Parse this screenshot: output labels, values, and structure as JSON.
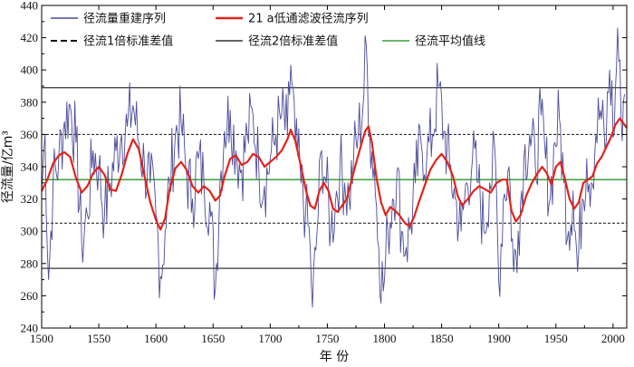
{
  "chart_data": {
    "type": "line",
    "xlabel": "年 份",
    "ylabel": "径流量/亿m³",
    "xlim": [
      1500,
      2012
    ],
    "ylim": [
      240,
      440
    ],
    "xticks": [
      "1500",
      "1550",
      "1600",
      "1650",
      "1700",
      "1750",
      "1800",
      "1850",
      "1900",
      "1950",
      "2000"
    ],
    "yticks": [
      "240",
      "260",
      "280",
      "300",
      "320",
      "340",
      "360",
      "380",
      "400",
      "420",
      "440"
    ],
    "legend": {
      "position": "top",
      "items": [
        {
          "key": "recon",
          "label": "径流量重建序列"
        },
        {
          "key": "smooth",
          "label": "21 a低通滤波径流序列"
        },
        {
          "key": "sd1",
          "label": "径流1倍标准差值"
        },
        {
          "key": "sd2",
          "label": "径流2倍标准差值"
        },
        {
          "key": "mean",
          "label": "径流平均值线"
        }
      ]
    },
    "colors": {
      "recon": "#4a4a9a",
      "smooth": "#e2231a",
      "sd1": "#111111",
      "sd2": "#333333",
      "mean": "#3aa13a"
    },
    "reference_lines": {
      "mean": 332,
      "sd1_upper": 360,
      "sd1_lower": 305,
      "sd2_upper": 389,
      "sd2_lower": 277
    },
    "reconstructed_series": {
      "step_years": 1,
      "peaks": [
        {
          "year": 1500,
          "value": 325
        },
        {
          "year": 1503,
          "value": 360
        },
        {
          "year": 1506,
          "value": 270
        },
        {
          "year": 1510,
          "value": 330
        },
        {
          "year": 1515,
          "value": 345
        },
        {
          "year": 1520,
          "value": 368
        },
        {
          "year": 1525,
          "value": 378
        },
        {
          "year": 1530,
          "value": 355
        },
        {
          "year": 1535,
          "value": 292
        },
        {
          "year": 1540,
          "value": 310
        },
        {
          "year": 1545,
          "value": 350
        },
        {
          "year": 1550,
          "value": 340
        },
        {
          "year": 1555,
          "value": 310
        },
        {
          "year": 1560,
          "value": 330
        },
        {
          "year": 1565,
          "value": 350
        },
        {
          "year": 1570,
          "value": 360
        },
        {
          "year": 1575,
          "value": 365
        },
        {
          "year": 1580,
          "value": 378
        },
        {
          "year": 1585,
          "value": 355
        },
        {
          "year": 1590,
          "value": 340
        },
        {
          "year": 1595,
          "value": 330
        },
        {
          "year": 1600,
          "value": 310
        },
        {
          "year": 1604,
          "value": 272
        },
        {
          "year": 1608,
          "value": 300
        },
        {
          "year": 1612,
          "value": 330
        },
        {
          "year": 1617,
          "value": 360
        },
        {
          "year": 1622,
          "value": 368
        },
        {
          "year": 1627,
          "value": 335
        },
        {
          "year": 1632,
          "value": 320
        },
        {
          "year": 1637,
          "value": 345
        },
        {
          "year": 1642,
          "value": 330
        },
        {
          "year": 1647,
          "value": 318
        },
        {
          "year": 1652,
          "value": 264
        },
        {
          "year": 1656,
          "value": 330
        },
        {
          "year": 1660,
          "value": 362
        },
        {
          "year": 1665,
          "value": 375
        },
        {
          "year": 1670,
          "value": 350
        },
        {
          "year": 1675,
          "value": 338
        },
        {
          "year": 1680,
          "value": 360
        },
        {
          "year": 1685,
          "value": 372
        },
        {
          "year": 1690,
          "value": 340
        },
        {
          "year": 1695,
          "value": 328
        },
        {
          "year": 1700,
          "value": 345
        },
        {
          "year": 1705,
          "value": 360
        },
        {
          "year": 1710,
          "value": 372
        },
        {
          "year": 1715,
          "value": 360
        },
        {
          "year": 1718,
          "value": 403
        },
        {
          "year": 1722,
          "value": 355
        },
        {
          "year": 1727,
          "value": 330
        },
        {
          "year": 1731,
          "value": 312
        },
        {
          "year": 1735,
          "value": 290
        },
        {
          "year": 1737,
          "value": 253
        },
        {
          "year": 1741,
          "value": 300
        },
        {
          "year": 1745,
          "value": 350
        },
        {
          "year": 1749,
          "value": 330
        },
        {
          "year": 1753,
          "value": 300
        },
        {
          "year": 1757,
          "value": 318
        },
        {
          "year": 1761,
          "value": 340
        },
        {
          "year": 1765,
          "value": 330
        },
        {
          "year": 1769,
          "value": 320
        },
        {
          "year": 1773,
          "value": 345
        },
        {
          "year": 1777,
          "value": 360
        },
        {
          "year": 1781,
          "value": 375
        },
        {
          "year": 1784,
          "value": 416
        },
        {
          "year": 1787,
          "value": 360
        },
        {
          "year": 1791,
          "value": 340
        },
        {
          "year": 1795,
          "value": 290
        },
        {
          "year": 1799,
          "value": 263
        },
        {
          "year": 1803,
          "value": 300
        },
        {
          "year": 1807,
          "value": 320
        },
        {
          "year": 1811,
          "value": 338
        },
        {
          "year": 1815,
          "value": 300
        },
        {
          "year": 1819,
          "value": 290
        },
        {
          "year": 1823,
          "value": 305
        },
        {
          "year": 1827,
          "value": 330
        },
        {
          "year": 1832,
          "value": 355
        },
        {
          "year": 1837,
          "value": 345
        },
        {
          "year": 1842,
          "value": 360
        },
        {
          "year": 1847,
          "value": 390
        },
        {
          "year": 1852,
          "value": 362
        },
        {
          "year": 1857,
          "value": 340
        },
        {
          "year": 1862,
          "value": 320
        },
        {
          "year": 1867,
          "value": 300
        },
        {
          "year": 1872,
          "value": 330
        },
        {
          "year": 1877,
          "value": 345
        },
        {
          "year": 1882,
          "value": 330
        },
        {
          "year": 1887,
          "value": 300
        },
        {
          "year": 1892,
          "value": 330
        },
        {
          "year": 1897,
          "value": 345
        },
        {
          "year": 1900,
          "value": 268
        },
        {
          "year": 1904,
          "value": 320
        },
        {
          "year": 1909,
          "value": 340
        },
        {
          "year": 1913,
          "value": 275
        },
        {
          "year": 1917,
          "value": 300
        },
        {
          "year": 1922,
          "value": 345
        },
        {
          "year": 1927,
          "value": 360
        },
        {
          "year": 1932,
          "value": 340
        },
        {
          "year": 1937,
          "value": 372
        },
        {
          "year": 1941,
          "value": 345
        },
        {
          "year": 1945,
          "value": 320
        },
        {
          "year": 1949,
          "value": 355
        },
        {
          "year": 1953,
          "value": 370
        },
        {
          "year": 1957,
          "value": 330
        },
        {
          "year": 1961,
          "value": 300
        },
        {
          "year": 1965,
          "value": 325
        },
        {
          "year": 1969,
          "value": 275
        },
        {
          "year": 1973,
          "value": 320
        },
        {
          "year": 1977,
          "value": 345
        },
        {
          "year": 1981,
          "value": 330
        },
        {
          "year": 1985,
          "value": 360
        },
        {
          "year": 1989,
          "value": 375
        },
        {
          "year": 1993,
          "value": 350
        },
        {
          "year": 1997,
          "value": 400
        },
        {
          "year": 2001,
          "value": 360
        },
        {
          "year": 2004,
          "value": 426
        },
        {
          "year": 2007,
          "value": 370
        },
        {
          "year": 2010,
          "value": 385
        }
      ]
    },
    "smoothed_series": {
      "points": [
        [
          1500,
          325
        ],
        [
          1505,
          332
        ],
        [
          1510,
          342
        ],
        [
          1515,
          347
        ],
        [
          1520,
          349
        ],
        [
          1525,
          346
        ],
        [
          1530,
          333
        ],
        [
          1535,
          324
        ],
        [
          1540,
          328
        ],
        [
          1545,
          336
        ],
        [
          1550,
          340
        ],
        [
          1555,
          335
        ],
        [
          1560,
          326
        ],
        [
          1565,
          325
        ],
        [
          1570,
          335
        ],
        [
          1575,
          348
        ],
        [
          1580,
          357
        ],
        [
          1585,
          351
        ],
        [
          1590,
          334
        ],
        [
          1595,
          318
        ],
        [
          1600,
          307
        ],
        [
          1604,
          301
        ],
        [
          1608,
          308
        ],
        [
          1612,
          326
        ],
        [
          1617,
          339
        ],
        [
          1622,
          343
        ],
        [
          1627,
          338
        ],
        [
          1632,
          328
        ],
        [
          1637,
          324
        ],
        [
          1642,
          328
        ],
        [
          1647,
          325
        ],
        [
          1652,
          319
        ],
        [
          1656,
          322
        ],
        [
          1660,
          334
        ],
        [
          1665,
          345
        ],
        [
          1670,
          347
        ],
        [
          1675,
          341
        ],
        [
          1680,
          343
        ],
        [
          1685,
          348
        ],
        [
          1690,
          346
        ],
        [
          1695,
          340
        ],
        [
          1700,
          343
        ],
        [
          1705,
          346
        ],
        [
          1710,
          350
        ],
        [
          1715,
          357
        ],
        [
          1718,
          363
        ],
        [
          1722,
          356
        ],
        [
          1727,
          340
        ],
        [
          1731,
          326
        ],
        [
          1735,
          316
        ],
        [
          1739,
          314
        ],
        [
          1743,
          325
        ],
        [
          1747,
          330
        ],
        [
          1751,
          325
        ],
        [
          1755,
          314
        ],
        [
          1759,
          312
        ],
        [
          1763,
          316
        ],
        [
          1767,
          320
        ],
        [
          1771,
          331
        ],
        [
          1775,
          342
        ],
        [
          1779,
          352
        ],
        [
          1783,
          362
        ],
        [
          1786,
          365
        ],
        [
          1789,
          355
        ],
        [
          1793,
          333
        ],
        [
          1797,
          318
        ],
        [
          1801,
          310
        ],
        [
          1805,
          315
        ],
        [
          1809,
          313
        ],
        [
          1813,
          310
        ],
        [
          1818,
          305
        ],
        [
          1822,
          303
        ],
        [
          1826,
          309
        ],
        [
          1830,
          318
        ],
        [
          1835,
          328
        ],
        [
          1840,
          338
        ],
        [
          1845,
          344
        ],
        [
          1850,
          348
        ],
        [
          1855,
          343
        ],
        [
          1860,
          334
        ],
        [
          1864,
          322
        ],
        [
          1868,
          316
        ],
        [
          1873,
          320
        ],
        [
          1878,
          325
        ],
        [
          1883,
          328
        ],
        [
          1888,
          326
        ],
        [
          1893,
          324
        ],
        [
          1898,
          330
        ],
        [
          1903,
          332
        ],
        [
          1907,
          332
        ],
        [
          1911,
          313
        ],
        [
          1915,
          306
        ],
        [
          1919,
          310
        ],
        [
          1924,
          322
        ],
        [
          1929,
          330
        ],
        [
          1934,
          336
        ],
        [
          1938,
          340
        ],
        [
          1942,
          336
        ],
        [
          1946,
          329
        ],
        [
          1950,
          340
        ],
        [
          1954,
          343
        ],
        [
          1958,
          332
        ],
        [
          1962,
          320
        ],
        [
          1966,
          314
        ],
        [
          1970,
          318
        ],
        [
          1974,
          330
        ],
        [
          1978,
          332
        ],
        [
          1982,
          334
        ],
        [
          1986,
          342
        ],
        [
          1990,
          346
        ],
        [
          1994,
          352
        ],
        [
          1998,
          358
        ],
        [
          2002,
          366
        ],
        [
          2006,
          370
        ],
        [
          2010,
          366
        ],
        [
          2012,
          364
        ]
      ]
    }
  }
}
